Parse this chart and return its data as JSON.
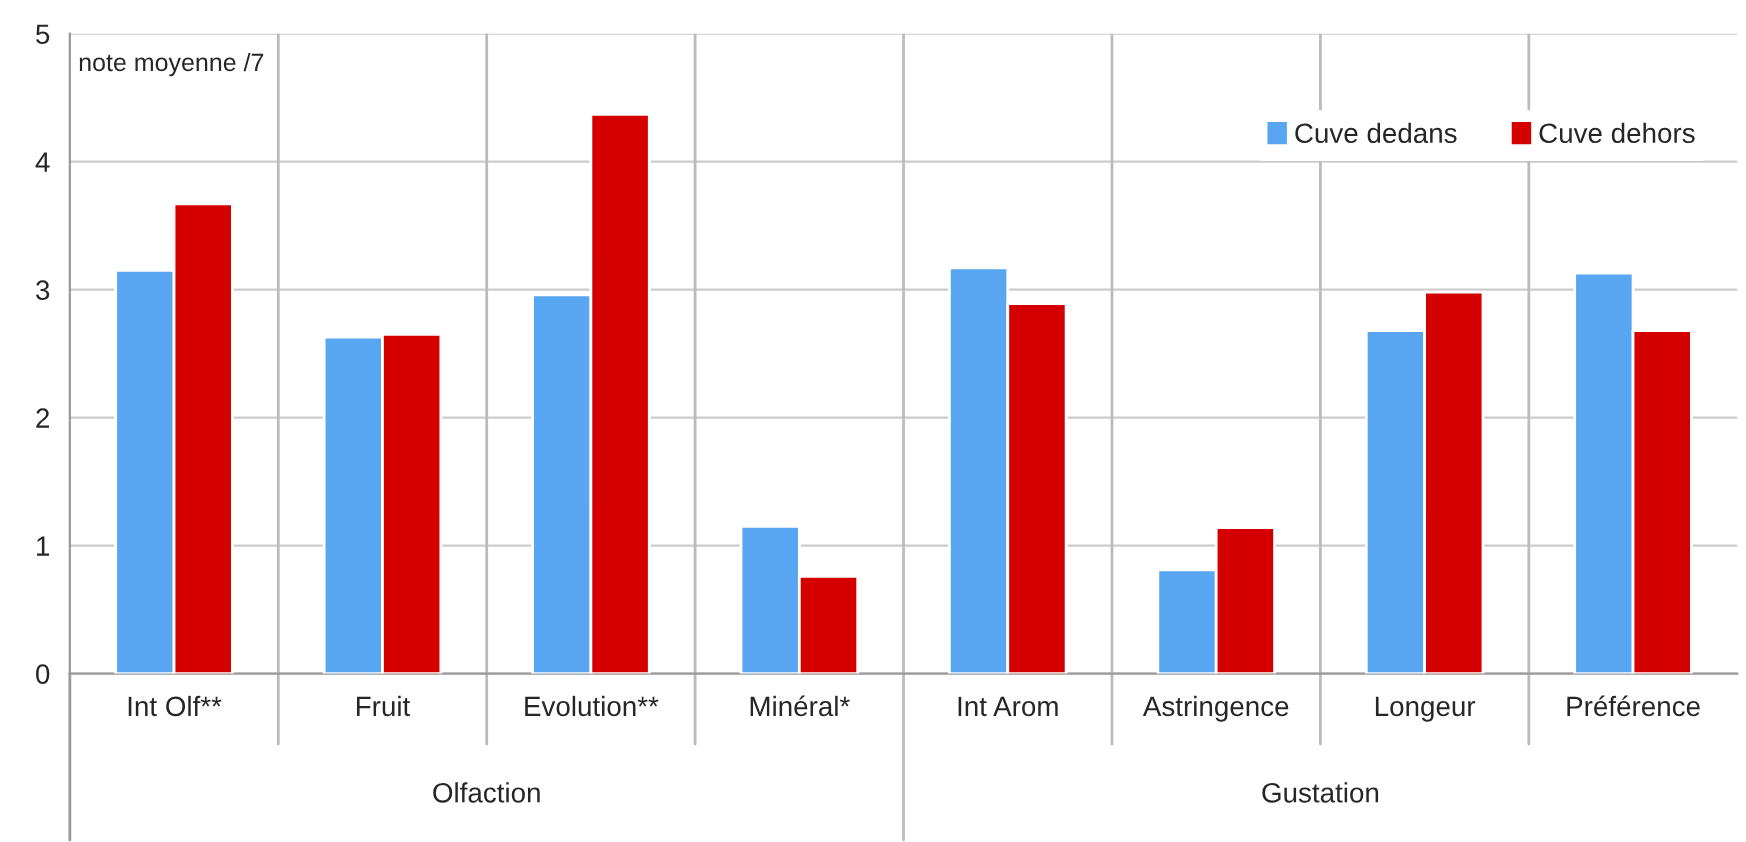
{
  "chart_data": {
    "type": "bar",
    "ylabel": "note moyenne /7",
    "categories": [
      "Int Olf**",
      "Fruit",
      "Evolution**",
      "Minéral*",
      "Int Arom",
      "Astringence",
      "Longeur",
      "Préférence"
    ],
    "series": [
      {
        "name": "Cuve dedans",
        "color": "#58a6f2",
        "values": [
          3.15,
          2.63,
          2.96,
          1.15,
          3.17,
          0.81,
          2.68,
          3.13
        ]
      },
      {
        "name": "Cuve dehors",
        "color": "#d40000",
        "values": [
          3.67,
          2.65,
          4.37,
          0.76,
          2.89,
          1.14,
          2.98,
          2.68
        ]
      }
    ],
    "ylim": [
      0,
      5
    ],
    "yticks": [
      0,
      1,
      2,
      3,
      4,
      5
    ],
    "grid": true,
    "legend": "top right",
    "annotations": [
      "Olfaction",
      "Gustation"
    ]
  }
}
